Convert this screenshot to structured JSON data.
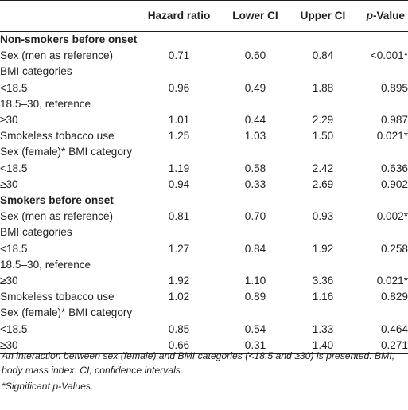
{
  "header": {
    "col0": "",
    "col1": "Hazard ratio",
    "col2": "Lower CI",
    "col3": "Upper CI",
    "col4_italic": "p",
    "col4_rest": "-Value"
  },
  "rows": [
    {
      "type": "section",
      "label": "Non-smokers before onset"
    },
    {
      "type": "data",
      "label": "Sex (men as reference)",
      "hr": "0.71",
      "lower": "0.60",
      "upper": "0.84",
      "p": "<0.001*"
    },
    {
      "type": "data",
      "label": "BMI categories",
      "hr": "",
      "lower": "",
      "upper": "",
      "p": ""
    },
    {
      "type": "data",
      "label": "<18.5",
      "hr": "0.96",
      "lower": "0.49",
      "upper": "1.88",
      "p": "0.895"
    },
    {
      "type": "data",
      "label": "18.5–30, reference",
      "hr": "",
      "lower": "",
      "upper": "",
      "p": ""
    },
    {
      "type": "data",
      "label": "≥30",
      "hr": "1.01",
      "lower": "0.44",
      "upper": "2.29",
      "p": "0.987"
    },
    {
      "type": "data",
      "label": "Smokeless tobacco use",
      "hr": "1.25",
      "lower": "1.03",
      "upper": "1.50",
      "p": "0.021*"
    },
    {
      "type": "data",
      "label": "Sex (female)* BMI category",
      "hr": "",
      "lower": "",
      "upper": "",
      "p": ""
    },
    {
      "type": "data",
      "label": "<18.5",
      "hr": "1.19",
      "lower": "0.58",
      "upper": "2.42",
      "p": "0.636"
    },
    {
      "type": "data",
      "label": "≥30",
      "hr": "0.94",
      "lower": "0.33",
      "upper": "2.69",
      "p": "0.902"
    },
    {
      "type": "section",
      "label": "Smokers before onset"
    },
    {
      "type": "data",
      "label": "Sex (men as reference)",
      "hr": "0.81",
      "lower": "0.70",
      "upper": "0.93",
      "p": "0.002*"
    },
    {
      "type": "data",
      "label": "BMI categories",
      "hr": "",
      "lower": "",
      "upper": "",
      "p": ""
    },
    {
      "type": "data",
      "label": "<18.5",
      "hr": "1.27",
      "lower": "0.84",
      "upper": "1.92",
      "p": "0.258"
    },
    {
      "type": "data",
      "label": "18.5–30, reference",
      "hr": "",
      "lower": "",
      "upper": "",
      "p": ""
    },
    {
      "type": "data",
      "label": "≥30",
      "hr": "1.92",
      "lower": "1.10",
      "upper": "3.36",
      "p": "0.021*"
    },
    {
      "type": "data",
      "label": "Smokeless tobacco use",
      "hr": "1.02",
      "lower": "0.89",
      "upper": "1.16",
      "p": "0.829"
    },
    {
      "type": "data",
      "label": "Sex (female)* BMI category",
      "hr": "",
      "lower": "",
      "upper": "",
      "p": ""
    },
    {
      "type": "data",
      "label": "<18.5",
      "hr": "0.85",
      "lower": "0.54",
      "upper": "1.33",
      "p": "0.464"
    },
    {
      "type": "data",
      "label": "≥30",
      "hr": "0.66",
      "lower": "0.31",
      "upper": "1.40",
      "p": "0.271"
    }
  ],
  "footnotes": {
    "note1": "An interaction between sex (female) and BMI categories (<18.5 and ≥30) is presented. BMI, body mass index. CI, confidence intervals.",
    "note2": "*Significant p-Values."
  },
  "colors": {
    "text": "#231f20",
    "rule": "#231f20",
    "background": "#ffffff"
  }
}
